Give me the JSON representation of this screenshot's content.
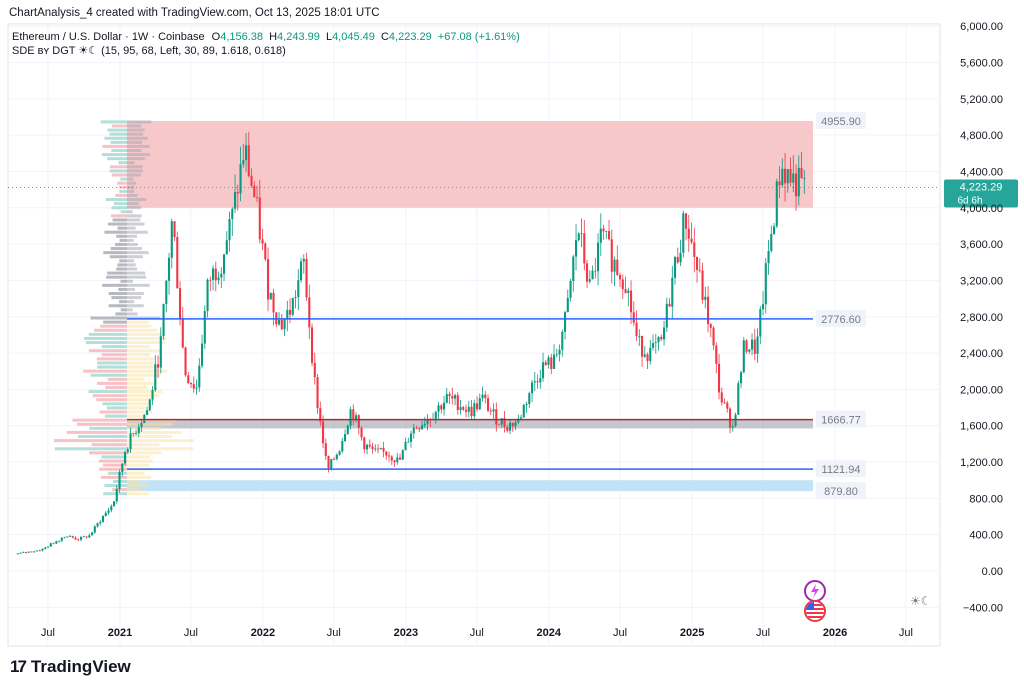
{
  "header": {
    "credit": "ChartAnalysis_4 created with TradingView.com, Oct 13, 2025 18:01 UTC",
    "symbol": "Ethereum / U.S. Dollar · 1W · Coinbase",
    "o_label": "O",
    "o_value": "4,156.38",
    "h_label": "H",
    "h_value": "4,243.99",
    "l_label": "L",
    "l_value": "4,045.49",
    "c_label": "C",
    "c_value": "4,223.29",
    "change": "+67.08 (+1.61%)",
    "indicator": "SDE ʙʏ DGT ☀☾ (15, 95, 68, Left, 30, 89, 1.618, 0.618)"
  },
  "brand": {
    "logo": "17",
    "name": "TradingView"
  },
  "colors": {
    "up": "#089981",
    "down": "#f23645",
    "level_line": "#2962ff",
    "resistance_zone": "#f7c5c7",
    "support_zone": "#bfe0f7",
    "neutral_zone": "#b2b5be",
    "volume_profile_up": "#9fd7cf",
    "volume_profile_down": "#f5b3b8",
    "volume_profile_gray": "#a6a8b0",
    "volume_profile_yellow": "#f9e4a8"
  },
  "icons": [
    "lightning-icon",
    "flag-icon",
    "theme-toggle-icon"
  ],
  "chart_data": {
    "type": "candlestick",
    "title": "Ethereum / U.S. Dollar · 1W · Coinbase",
    "y_axis": {
      "ticks": [
        -400,
        0,
        400,
        800,
        1200,
        1600,
        2000,
        2400,
        2800,
        3200,
        3600,
        4000,
        4400,
        4800,
        5200,
        5600,
        6000
      ],
      "tick_labels": [
        "−400.00",
        "0.00",
        "400.00",
        "800.00",
        "1,200.00",
        "1,600.00",
        "2,000.00",
        "2,400.00",
        "2,800.00",
        "3,200.00",
        "3,600.00",
        "4,000.00",
        "4,400.00",
        "4,800.00",
        "5,200.00",
        "5,600.00",
        "6,000.00"
      ],
      "ylim": [
        -550,
        6050
      ]
    },
    "x_axis": {
      "tick_labels": [
        "Jul",
        "2021",
        "Jul",
        "2022",
        "Jul",
        "2023",
        "Jul",
        "2024",
        "Jul",
        "2025",
        "Jul",
        "2026",
        "Jul"
      ],
      "tick_dates": [
        "2020-07",
        "2021-01",
        "2021-07",
        "2022-01",
        "2022-07",
        "2023-01",
        "2023-07",
        "2024-01",
        "2024-07",
        "2025-01",
        "2025-07",
        "2026-01",
        "2026-07"
      ]
    },
    "current_price": {
      "value": 4223.29,
      "label": "4,223.29",
      "countdown": "6d 6h"
    },
    "levels": [
      {
        "value": 4955.9,
        "label": "4955.90"
      },
      {
        "value": 2776.6,
        "label": "2776.60"
      },
      {
        "value": 1666.77,
        "label": "1666.77"
      },
      {
        "value": 1121.94,
        "label": "1121.94"
      },
      {
        "value": 879.8,
        "label": "879.80"
      }
    ],
    "zones": [
      {
        "name": "resistance",
        "from": 4000,
        "to": 4955.9
      },
      {
        "name": "neutral",
        "from": 1570,
        "to": 1666.77
      },
      {
        "name": "support",
        "from": 879.8,
        "to": 1000
      }
    ],
    "price_path": [
      [
        "2020-04",
        190
      ],
      [
        "2020-06",
        235
      ],
      [
        "2020-08",
        390
      ],
      [
        "2020-09",
        350
      ],
      [
        "2020-10",
        390
      ],
      [
        "2020-11",
        580
      ],
      [
        "2020-12",
        740
      ],
      [
        "2021-01",
        1350
      ],
      [
        "2021-02",
        1600
      ],
      [
        "2021-03",
        1800
      ],
      [
        "2021-04",
        2500
      ],
      [
        "2021-05",
        3900
      ],
      [
        "2021-06",
        2200
      ],
      [
        "2021-07",
        2000
      ],
      [
        "2021-08",
        3200
      ],
      [
        "2021-09",
        3400
      ],
      [
        "2021-10",
        3900
      ],
      [
        "2021-11",
        4650
      ],
      [
        "2021-12",
        4000
      ],
      [
        "2022-01",
        3100
      ],
      [
        "2022-02",
        2700
      ],
      [
        "2022-03",
        2900
      ],
      [
        "2022-04",
        3400
      ],
      [
        "2022-05",
        2000
      ],
      [
        "2022-06",
        1100
      ],
      [
        "2022-07",
        1350
      ],
      [
        "2022-08",
        1800
      ],
      [
        "2022-09",
        1400
      ],
      [
        "2022-10",
        1300
      ],
      [
        "2022-11",
        1300
      ],
      [
        "2022-12",
        1200
      ],
      [
        "2023-01",
        1550
      ],
      [
        "2023-02",
        1650
      ],
      [
        "2023-03",
        1750
      ],
      [
        "2023-04",
        1900
      ],
      [
        "2023-05",
        1850
      ],
      [
        "2023-06",
        1750
      ],
      [
        "2023-07",
        1900
      ],
      [
        "2023-08",
        1700
      ],
      [
        "2023-09",
        1600
      ],
      [
        "2023-10",
        1650
      ],
      [
        "2023-11",
        2000
      ],
      [
        "2023-12",
        2250
      ],
      [
        "2024-01",
        2300
      ],
      [
        "2024-02",
        2800
      ],
      [
        "2024-03",
        3800
      ],
      [
        "2024-04",
        3100
      ],
      [
        "2024-05",
        3700
      ],
      [
        "2024-06",
        3400
      ],
      [
        "2024-07",
        3200
      ],
      [
        "2024-08",
        2500
      ],
      [
        "2024-09",
        2400
      ],
      [
        "2024-10",
        2500
      ],
      [
        "2024-11",
        3300
      ],
      [
        "2024-12",
        3900
      ],
      [
        "2025-01",
        3300
      ],
      [
        "2025-02",
        2700
      ],
      [
        "2025-03",
        1900
      ],
      [
        "2025-04",
        1580
      ],
      [
        "2025-05",
        2500
      ],
      [
        "2025-06",
        2450
      ],
      [
        "2025-07",
        3500
      ],
      [
        "2025-08",
        4450
      ],
      [
        "2025-09",
        4300
      ],
      [
        "2025-10",
        4223
      ]
    ]
  }
}
